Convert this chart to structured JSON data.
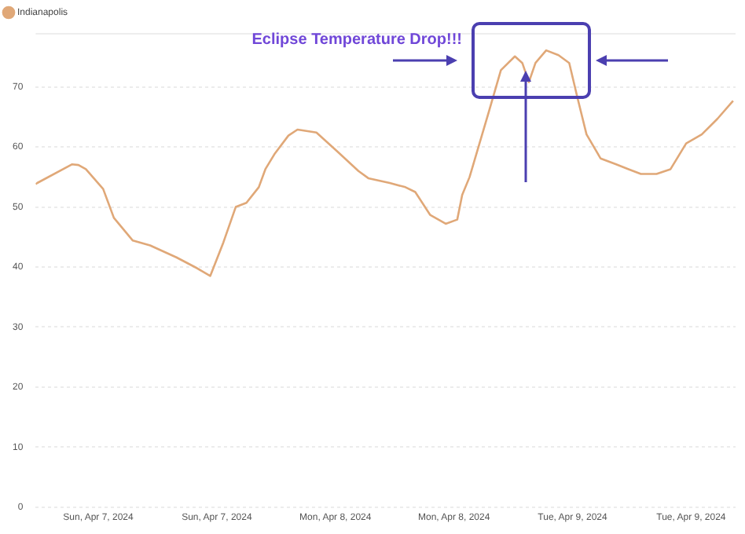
{
  "chart_data": {
    "type": "line",
    "annotations": [
      "Eclipse Temperature Drop!!!"
    ],
    "x": [
      "2024-04-06T17:40",
      "2024-04-06T17:50",
      "2024-04-06T21:20",
      "2024-04-06T22:00",
      "2024-04-06T22:45",
      "2024-04-07T00:30",
      "2024-04-07T01:35",
      "2024-04-07T03:30",
      "2024-04-07T05:15",
      "2024-04-07T07:55",
      "2024-04-07T10:00",
      "2024-04-07T11:20",
      "2024-04-07T12:40",
      "2024-04-07T13:55",
      "2024-04-07T15:00",
      "2024-04-07T16:15",
      "2024-04-07T16:55",
      "2024-04-07T17:50",
      "2024-04-07T19:15",
      "2024-04-07T20:10",
      "2024-04-07T22:05",
      "2024-04-08T00:10",
      "2024-04-08T02:20",
      "2024-04-08T03:20",
      "2024-04-08T05:30",
      "2024-04-08T07:05",
      "2024-04-08T08:05",
      "2024-04-08T09:35",
      "2024-04-08T11:10",
      "2024-04-08T12:20",
      "2024-04-08T12:50",
      "2024-04-08T13:35",
      "2024-04-08T15:30",
      "2024-04-08T16:45",
      "2024-04-08T18:10",
      "2024-04-08T18:55",
      "2024-04-08T19:35",
      "2024-04-08T20:15",
      "2024-04-08T21:20",
      "2024-04-08T22:35",
      "2024-04-08T23:40",
      "2024-04-09T00:30",
      "2024-04-09T01:25",
      "2024-04-09T02:50",
      "2024-04-09T04:25",
      "2024-04-09T05:40",
      "2024-04-09T06:55",
      "2024-04-09T08:30",
      "2024-04-09T09:55",
      "2024-04-09T11:30",
      "2024-04-09T13:05",
      "2024-04-09T14:40",
      "2024-04-09T16:15"
    ],
    "series": [
      {
        "name": "Indianapolis",
        "color": "#e0a878",
        "values": [
          53.8,
          54,
          57.1,
          57,
          56.3,
          53,
          48.2,
          44.4,
          43.6,
          41.6,
          39.8,
          38.5,
          44.1,
          50,
          50.7,
          53.3,
          56.3,
          58.8,
          61.9,
          62.9,
          62.4,
          59.3,
          56,
          54.8,
          54,
          53.3,
          52.5,
          48.7,
          47.2,
          47.9,
          52,
          55,
          65.7,
          72.8,
          75.1,
          74,
          70.8,
          74,
          76.1,
          75.3,
          74,
          68.2,
          62.1,
          58.1,
          57.1,
          56.3,
          55.5,
          55.5,
          56.3,
          60.6,
          62.1,
          64.7,
          67.7
        ]
      }
    ],
    "xlim": [
      "2024-04-06T17:40",
      "2024-04-09T16:30"
    ],
    "xticks": [
      {
        "value": "2024-04-07T00:00",
        "label": "Sun, Apr 7, 2024"
      },
      {
        "value": "2024-04-07T12:00",
        "label": "Sun, Apr 7, 2024"
      },
      {
        "value": "2024-04-08T00:00",
        "label": "Mon, Apr 8, 2024"
      },
      {
        "value": "2024-04-08T12:00",
        "label": "Mon, Apr 8, 2024"
      },
      {
        "value": "2024-04-09T00:00",
        "label": "Tue, Apr 9, 2024"
      },
      {
        "value": "2024-04-09T12:00",
        "label": "Tue, Apr 9, 2024"
      }
    ],
    "ylim": [
      0,
      79
    ],
    "yticks": [
      0,
      10,
      20,
      30,
      40,
      50,
      60,
      70
    ],
    "grid": "y",
    "legend": "top left",
    "marker": "none",
    "line_style": "solid"
  }
}
